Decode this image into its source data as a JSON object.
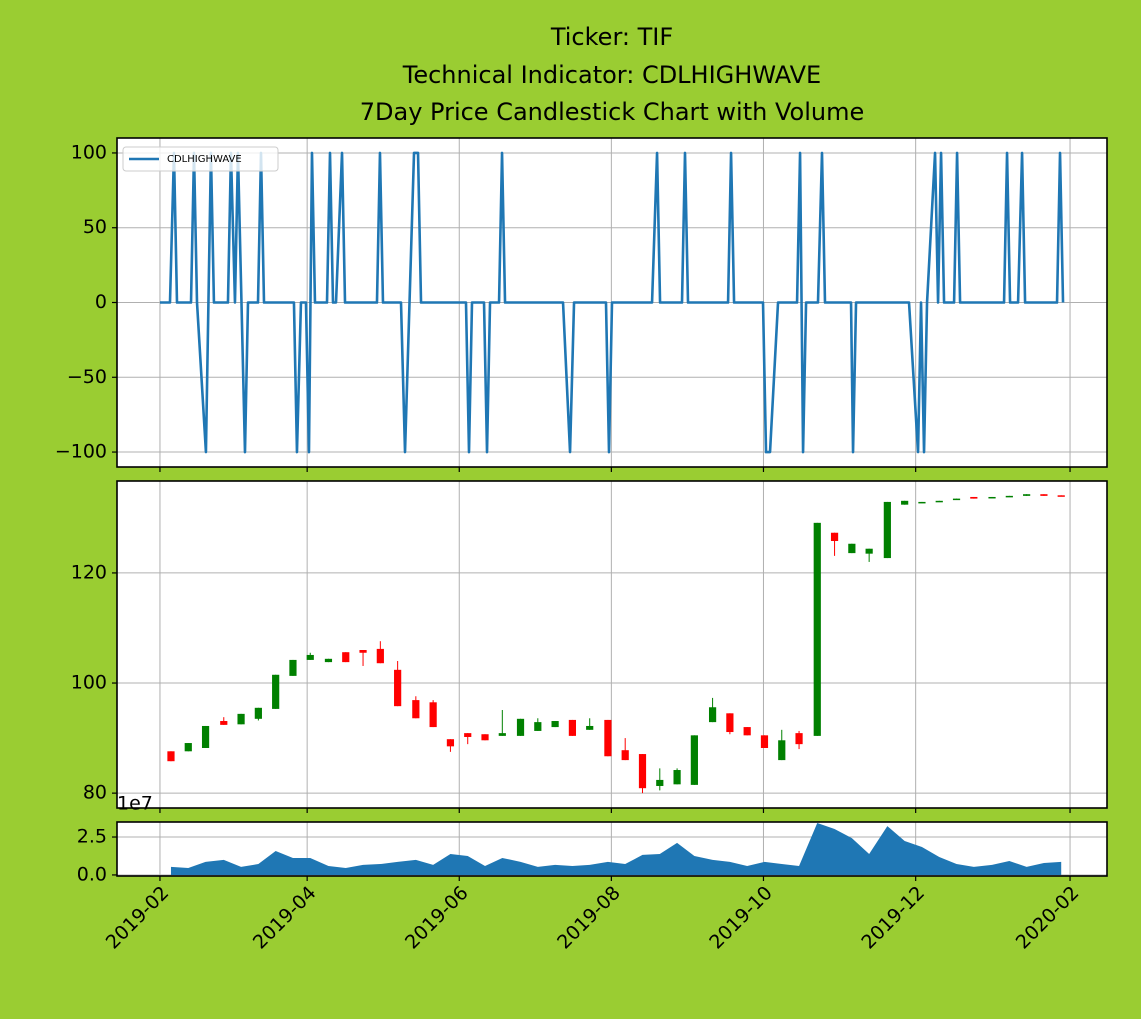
{
  "chart_data": [
    {
      "type": "line",
      "title": [
        "Ticker: TIF",
        "Technical Indicator: CDLHIGHWAVE",
        "7Day Price Candlestick Chart with Volume"
      ],
      "legend": "upper left",
      "grid": true,
      "ylim": [
        -110,
        110
      ],
      "yticks": [
        100,
        50,
        0,
        {
          "value": -50,
          "label": "−50"
        },
        {
          "value": -100,
          "label": "−100"
        }
      ],
      "series": [
        {
          "name": "CDLHIGHWAVE",
          "color": "#1f77b4",
          "x": [
            2019.0849,
            2019.0959,
            2019.1003,
            2019.1036,
            2019.119,
            2019.1223,
            2019.1256,
            2019.1354,
            2019.1409,
            2019.1442,
            2019.1596,
            2019.1629,
            2019.1673,
            2019.1706,
            2019.1783,
            2019.1816,
            2019.1926,
            2019.1959,
            2019.1992,
            2019.2321,
            2019.2354,
            2019.2398,
            2019.2453,
            2019.2486,
            2019.2519,
            2019.2552,
            2019.2684,
            2019.2717,
            2019.275,
            2019.2783,
            2019.2849,
            2019.2882,
            2019.3233,
            2019.3266,
            2019.3299,
            2019.3497,
            2019.3541,
            2019.364,
            2019.3684,
            2019.3717,
            2019.4211,
            2019.4244,
            2019.4277,
            2019.4409,
            2019.4442,
            2019.4475,
            2019.4574,
            2019.4607,
            2019.464,
            2019.5277,
            2019.5354,
            2019.5398,
            2019.5749,
            2019.5782,
            2019.5815,
            2019.6255,
            2019.631,
            2019.6343,
            2019.6584,
            2019.6617,
            2019.665,
            2019.709,
            2019.7123,
            2019.7156,
            2019.7474,
            2019.7507,
            2019.7551,
            2019.7639,
            2019.7848,
            2019.7881,
            2019.7914,
            2019.7947,
            2019.8078,
            2019.8122,
            2019.8155,
            2019.8441,
            2019.8463,
            2019.8496,
            2019.9078,
            2019.9177,
            2019.921,
            2019.9243,
            2019.9276,
            2019.9364,
            2019.9397,
            2019.943,
            2019.9463,
            2019.9573,
            2019.9606,
            2019.9639,
            2020.0122,
            2020.0155,
            2020.0188,
            2020.0276,
            2020.032,
            2020.0353,
            2020.0704,
            2020.0737,
            2020.077
          ],
          "values": [
            0,
            0,
            100,
            0,
            0,
            100,
            0,
            -100,
            100,
            0,
            0,
            100,
            0,
            100,
            -100,
            0,
            0,
            100,
            0,
            0,
            -100,
            0,
            0,
            -100,
            100,
            0,
            0,
            100,
            0,
            0,
            100,
            0,
            0,
            100,
            0,
            0,
            -100,
            100,
            100,
            0,
            0,
            -100,
            0,
            0,
            -100,
            0,
            0,
            100,
            0,
            0,
            -100,
            0,
            0,
            -100,
            0,
            0,
            100,
            0,
            0,
            100,
            0,
            0,
            100,
            0,
            0,
            -100,
            -100,
            0,
            0,
            100,
            -100,
            0,
            0,
            100,
            0,
            0,
            -100,
            0,
            0,
            -100,
            0,
            -100,
            0,
            100,
            0,
            100,
            0,
            0,
            100,
            0,
            0,
            100,
            0,
            0,
            100,
            0,
            0,
            100,
            0
          ]
        }
      ]
    },
    {
      "type": "candlestick",
      "grid": true,
      "ylim": [
        77.3,
        136.7
      ],
      "yticks": [
        80,
        100,
        120
      ],
      "up_color": "green",
      "down_color": "red",
      "x": [
        2019.097,
        2019.116,
        2019.135,
        2019.155,
        2019.174,
        2019.193,
        2019.212,
        2019.231,
        2019.25,
        2019.27,
        2019.289,
        2019.308,
        2019.327,
        2019.346,
        2019.366,
        2019.385,
        2019.404,
        2019.423,
        2019.442,
        2019.461,
        2019.481,
        2019.5,
        2019.519,
        2019.538,
        2019.557,
        2019.577,
        2019.596,
        2019.615,
        2019.634,
        2019.653,
        2019.672,
        2019.692,
        2019.711,
        2019.73,
        2019.749,
        2019.768,
        2019.787,
        2019.807,
        2019.826,
        2019.845,
        2019.864,
        2019.884,
        2019.903,
        2019.922,
        2019.941,
        2019.96,
        2019.979,
        2019.999,
        2020.018,
        2020.037,
        2020.056,
        2020.075
      ],
      "open": [
        87.6,
        87.6,
        88.2,
        93.1,
        92.5,
        93.5,
        95.3,
        101.3,
        104.2,
        103.8,
        105.6,
        106.0,
        106.2,
        102.4,
        96.9,
        96.5,
        89.8,
        90.9,
        90.7,
        90.4,
        90.4,
        91.3,
        92.0,
        93.3,
        91.5,
        93.3,
        87.8,
        87.1,
        81.3,
        81.6,
        81.5,
        92.9,
        94.5,
        92.0,
        90.5,
        86.0,
        90.9,
        90.4,
        127.3,
        123.6,
        123.5,
        122.7,
        132.4,
        132.7,
        132.9,
        133.3,
        133.8,
        133.6,
        133.8,
        134.0,
        134.3,
        134.1
      ],
      "high": [
        87.6,
        89.1,
        92.2,
        93.8,
        94.4,
        95.5,
        101.5,
        104.2,
        105.5,
        104.4,
        105.6,
        106.0,
        107.6,
        104.0,
        97.6,
        96.9,
        89.8,
        90.9,
        90.7,
        95.1,
        93.5,
        93.6,
        93.1,
        93.3,
        93.6,
        93.3,
        90.0,
        87.1,
        84.5,
        84.5,
        90.5,
        97.3,
        94.5,
        92.0,
        90.5,
        91.5,
        91.3,
        129.1,
        127.3,
        125.3,
        124.4,
        132.9,
        133.1,
        132.9,
        133.1,
        133.5,
        133.8,
        133.8,
        134.0,
        134.3,
        134.3,
        134.1
      ],
      "low": [
        85.8,
        87.6,
        88.2,
        92.4,
        92.5,
        93.2,
        95.3,
        101.3,
        104.2,
        103.8,
        103.8,
        103.1,
        103.6,
        95.8,
        93.6,
        92.0,
        87.5,
        88.9,
        89.6,
        90.4,
        90.4,
        91.3,
        92.0,
        90.4,
        91.5,
        86.7,
        86.0,
        80.0,
        80.5,
        81.6,
        81.5,
        92.9,
        90.7,
        90.5,
        88.2,
        86.0,
        88.0,
        90.4,
        123.1,
        123.6,
        122.0,
        122.7,
        132.4,
        132.7,
        132.9,
        133.3,
        133.5,
        133.6,
        133.8,
        134.0,
        134.0,
        133.9
      ],
      "close": [
        85.8,
        89.1,
        92.2,
        92.4,
        94.4,
        95.5,
        101.5,
        104.2,
        105.1,
        104.4,
        103.8,
        105.5,
        103.6,
        95.8,
        93.6,
        92.0,
        88.5,
        90.2,
        89.6,
        90.9,
        93.5,
        92.9,
        93.1,
        90.4,
        92.2,
        86.7,
        86.0,
        80.9,
        82.4,
        84.2,
        90.5,
        95.6,
        91.1,
        90.5,
        88.2,
        89.6,
        88.9,
        129.1,
        125.8,
        125.3,
        124.4,
        132.9,
        133.1,
        132.9,
        133.1,
        133.5,
        133.5,
        133.8,
        134.0,
        134.3,
        134.0,
        133.9
      ]
    },
    {
      "type": "area",
      "grid": true,
      "color": "#1f77b4",
      "ylim": [
        -0.07,
        3.49
      ],
      "yticks": [
        {
          "value": 0,
          "label": "0.0"
        },
        {
          "value": 2.5,
          "label": "2.5"
        }
      ],
      "offset_label": "1e7",
      "xlim": [
        2019.0377,
        2020.1253
      ],
      "xticks": [
        {
          "value": 2019.0849,
          "label": "2019-02"
        },
        {
          "value": 2019.2466,
          "label": "2019-04"
        },
        {
          "value": 2019.4137,
          "label": "2019-06"
        },
        {
          "value": 2019.5808,
          "label": "2019-08"
        },
        {
          "value": 2019.7479,
          "label": "2019-10"
        },
        {
          "value": 2019.9151,
          "label": "2019-12"
        },
        {
          "value": 2020.0847,
          "label": "2020-02"
        }
      ],
      "x": [
        2019.097,
        2019.116,
        2019.135,
        2019.155,
        2019.174,
        2019.193,
        2019.212,
        2019.231,
        2019.25,
        2019.27,
        2019.289,
        2019.308,
        2019.327,
        2019.346,
        2019.366,
        2019.385,
        2019.404,
        2019.423,
        2019.442,
        2019.461,
        2019.481,
        2019.5,
        2019.519,
        2019.538,
        2019.557,
        2019.577,
        2019.596,
        2019.615,
        2019.634,
        2019.653,
        2019.672,
        2019.692,
        2019.711,
        2019.73,
        2019.749,
        2019.768,
        2019.787,
        2019.807,
        2019.826,
        2019.845,
        2019.864,
        2019.884,
        2019.903,
        2019.922,
        2019.941,
        2019.96,
        2019.979,
        2019.999,
        2020.018,
        2020.037,
        2020.056,
        2020.075
      ],
      "values": [
        0.53,
        0.46,
        0.86,
        0.99,
        0.53,
        0.72,
        1.58,
        1.12,
        1.12,
        0.59,
        0.46,
        0.66,
        0.72,
        0.86,
        0.99,
        0.66,
        1.38,
        1.25,
        0.59,
        1.12,
        0.86,
        0.53,
        0.66,
        0.59,
        0.66,
        0.86,
        0.72,
        1.32,
        1.38,
        2.11,
        1.25,
        0.99,
        0.86,
        0.59,
        0.86,
        0.72,
        0.59,
        3.42,
        3.03,
        2.43,
        1.38,
        3.22,
        2.24,
        1.84,
        1.18,
        0.72,
        0.53,
        0.66,
        0.92,
        0.53,
        0.79,
        0.86
      ]
    }
  ]
}
